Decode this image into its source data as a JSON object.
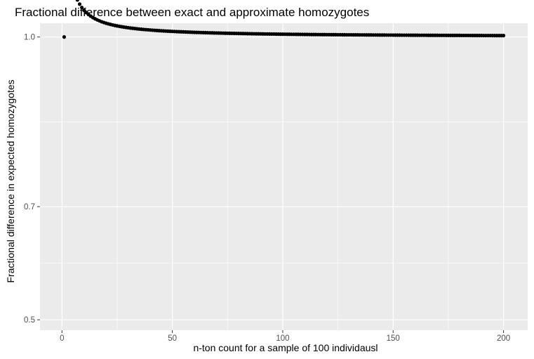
{
  "chart_data": {
    "type": "scatter",
    "title": "Fractional difference between exact and approximate homozygotes",
    "xlabel": "n-ton count for a sample of 100 individausl",
    "ylabel": "Fractional difference in expected homozygotes",
    "xlim": [
      -9.95,
      210.95
    ],
    "ylim": [
      0.4816,
      1.0244
    ],
    "x_ticks": [
      0,
      50,
      100,
      150,
      200
    ],
    "x_tick_labels": [
      "0",
      "50",
      "100",
      "150",
      "200"
    ],
    "y_ticks": [
      0.5,
      0.7,
      1.0
    ],
    "y_tick_labels": [
      "0.5",
      "0.7",
      "1.0"
    ],
    "grid": true,
    "legend": "none",
    "colors": {
      "panel": "#ebebeb",
      "grid": "#ffffff",
      "point": "#000000"
    },
    "x": "1..200 (one point per n-ton count)",
    "y_rule": "y = ((2n-1)/(2n))^(1/n) / ((2n-1)/(2n))"
  }
}
